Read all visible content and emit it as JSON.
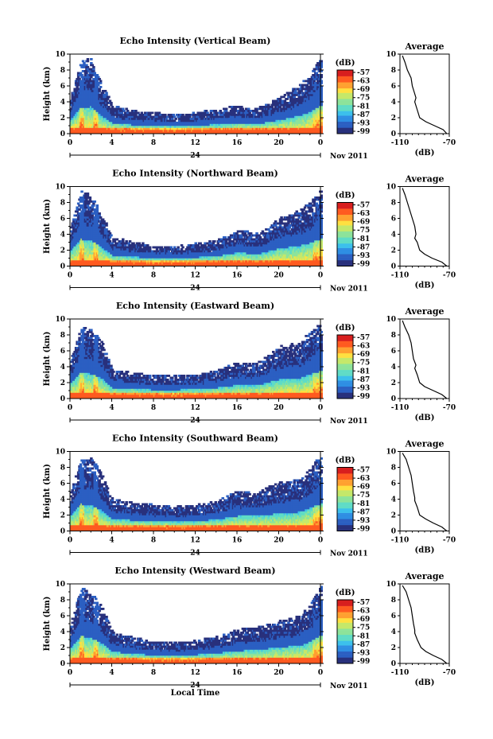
{
  "figure": {
    "xlabel": "Local Time",
    "date_label": "Nov 2011",
    "day_label": "24",
    "colorbar_label": "(dB)",
    "average_title": "Average",
    "average_xlabel": "(dB)",
    "ylabel": "Height (km)"
  },
  "colors": {
    "colormap": [
      "#28307c",
      "#2b5fc2",
      "#2f8ee3",
      "#3cc0ec",
      "#5fdcc6",
      "#8de39a",
      "#c5e86a",
      "#ffe040",
      "#ffa030",
      "#ff5a20",
      "#d81e1e"
    ]
  },
  "chart_data": [
    {
      "type": "heatmap",
      "title": "Echo Intensity (Vertical Beam)",
      "ylabel": "Height (km)",
      "ylim": [
        0,
        10
      ],
      "yticks": [
        "0",
        "2",
        "4",
        "6",
        "8",
        "10"
      ],
      "xlim": [
        0,
        24
      ],
      "xticks": [
        "0",
        "4",
        "8",
        "12",
        "16",
        "20",
        "0"
      ],
      "colorbar": {
        "label": "(dB)",
        "range": [
          -99,
          -57
        ],
        "ticks": [
          "-57",
          "-63",
          "-69",
          "-75",
          "-81",
          "-87",
          "-93",
          "-99"
        ]
      },
      "cloud_top_km": [
        [
          0,
          4.5
        ],
        [
          1,
          9.2
        ],
        [
          2,
          9.3
        ],
        [
          3,
          6
        ],
        [
          4,
          3.5
        ],
        [
          6,
          2.8
        ],
        [
          8,
          2.6
        ],
        [
          10,
          2.3
        ],
        [
          12,
          2.6
        ],
        [
          14,
          3
        ],
        [
          16,
          3.5
        ],
        [
          18,
          3.2
        ],
        [
          20,
          4.5
        ],
        [
          22,
          6.2
        ],
        [
          23,
          7.5
        ],
        [
          24,
          9.8
        ]
      ],
      "average_profile": {
        "title": "Average",
        "xlabel": "(dB)",
        "xticks": [
          "-110",
          "-70"
        ],
        "xlim": [
          -110,
          -70
        ],
        "ylim": [
          0,
          10
        ],
        "yticks": [
          "0",
          "2",
          "4",
          "6",
          "8",
          "10"
        ],
        "points": [
          [
            -108,
            9.8
          ],
          [
            -106,
            9
          ],
          [
            -104,
            8
          ],
          [
            -101,
            7
          ],
          [
            -100,
            6
          ],
          [
            -98,
            5
          ],
          [
            -97,
            4.5
          ],
          [
            -98,
            4
          ],
          [
            -96,
            3
          ],
          [
            -94,
            2
          ],
          [
            -89,
            1.5
          ],
          [
            -82,
            1
          ],
          [
            -75,
            0.5
          ],
          [
            -72,
            0
          ]
        ]
      }
    },
    {
      "type": "heatmap",
      "title": "Echo Intensity (Northward Beam)",
      "ylabel": "Height (km)",
      "ylim": [
        0,
        10
      ],
      "yticks": [
        "0",
        "2",
        "4",
        "6",
        "8",
        "10"
      ],
      "xlim": [
        0,
        24
      ],
      "xticks": [
        "0",
        "4",
        "8",
        "12",
        "16",
        "20",
        "0"
      ],
      "colorbar": {
        "label": "(dB)",
        "range": [
          -99,
          -57
        ],
        "ticks": [
          "-57",
          "-63",
          "-69",
          "-75",
          "-81",
          "-87",
          "-93",
          "-99"
        ]
      },
      "cloud_top_km": [
        [
          0,
          5
        ],
        [
          1,
          9.3
        ],
        [
          2,
          8.8
        ],
        [
          3,
          6.5
        ],
        [
          4,
          3.5
        ],
        [
          6,
          3
        ],
        [
          8,
          2.5
        ],
        [
          10,
          2.5
        ],
        [
          12,
          2.8
        ],
        [
          14,
          3.2
        ],
        [
          16,
          4.5
        ],
        [
          18,
          4
        ],
        [
          20,
          6
        ],
        [
          22,
          7
        ],
        [
          23,
          8
        ],
        [
          24,
          9.5
        ]
      ],
      "average_profile": {
        "title": "Average",
        "xlabel": "(dB)",
        "xticks": [
          "-110",
          "-70"
        ],
        "xlim": [
          -110,
          -70
        ],
        "ylim": [
          0,
          10
        ],
        "yticks": [
          "0",
          "2",
          "4",
          "6",
          "8",
          "10"
        ],
        "points": [
          [
            -108,
            9.8
          ],
          [
            -106,
            9
          ],
          [
            -104,
            8
          ],
          [
            -102,
            7
          ],
          [
            -100,
            6
          ],
          [
            -98,
            5
          ],
          [
            -97,
            4
          ],
          [
            -98,
            3.5
          ],
          [
            -96,
            3
          ],
          [
            -94,
            2
          ],
          [
            -90,
            1.5
          ],
          [
            -84,
            1
          ],
          [
            -76,
            0.5
          ],
          [
            -72,
            0
          ]
        ]
      }
    },
    {
      "type": "heatmap",
      "title": "Echo Intensity (Eastward Beam)",
      "ylabel": "Height (km)",
      "ylim": [
        0,
        10
      ],
      "yticks": [
        "0",
        "2",
        "4",
        "6",
        "8",
        "10"
      ],
      "xlim": [
        0,
        24
      ],
      "xticks": [
        "0",
        "4",
        "8",
        "12",
        "16",
        "20",
        "0"
      ],
      "colorbar": {
        "label": "(dB)",
        "range": [
          -99,
          -57
        ],
        "ticks": [
          "-57",
          "-63",
          "-69",
          "-75",
          "-81",
          "-87",
          "-93",
          "-99"
        ]
      },
      "cloud_top_km": [
        [
          0,
          5
        ],
        [
          1,
          9
        ],
        [
          2,
          8.5
        ],
        [
          3,
          7
        ],
        [
          4,
          3.5
        ],
        [
          6,
          3.2
        ],
        [
          8,
          2.8
        ],
        [
          10,
          2.8
        ],
        [
          12,
          3
        ],
        [
          14,
          3.5
        ],
        [
          16,
          4.5
        ],
        [
          18,
          4.5
        ],
        [
          20,
          6.5
        ],
        [
          22,
          7
        ],
        [
          23,
          8.5
        ],
        [
          24,
          9.5
        ]
      ],
      "average_profile": {
        "title": "Average",
        "xlabel": "(dB)",
        "xticks": [
          "-110",
          "-70"
        ],
        "xlim": [
          -110,
          -70
        ],
        "ylim": [
          0,
          10
        ],
        "yticks": [
          "0",
          "2",
          "4",
          "6",
          "8",
          "10"
        ],
        "points": [
          [
            -108,
            9.8
          ],
          [
            -106,
            9
          ],
          [
            -103,
            8
          ],
          [
            -101,
            7
          ],
          [
            -100,
            6
          ],
          [
            -99,
            5
          ],
          [
            -97,
            4.2
          ],
          [
            -98,
            3.8
          ],
          [
            -96,
            3
          ],
          [
            -94,
            2
          ],
          [
            -90,
            1.5
          ],
          [
            -83,
            1
          ],
          [
            -76,
            0.5
          ],
          [
            -72,
            0
          ]
        ]
      }
    },
    {
      "type": "heatmap",
      "title": "Echo Intensity (Southward Beam)",
      "ylabel": "Height (km)",
      "ylim": [
        0,
        10
      ],
      "yticks": [
        "0",
        "2",
        "4",
        "6",
        "8",
        "10"
      ],
      "xlim": [
        0,
        24
      ],
      "xticks": [
        "0",
        "4",
        "8",
        "12",
        "16",
        "20",
        "0"
      ],
      "colorbar": {
        "label": "(dB)",
        "range": [
          -99,
          -57
        ],
        "ticks": [
          "-57",
          "-63",
          "-69",
          "-75",
          "-81",
          "-87",
          "-93",
          "-99"
        ]
      },
      "cloud_top_km": [
        [
          0,
          5
        ],
        [
          1,
          9.3
        ],
        [
          2,
          9
        ],
        [
          3,
          7
        ],
        [
          4,
          4
        ],
        [
          6,
          3.5
        ],
        [
          8,
          3.2
        ],
        [
          10,
          3
        ],
        [
          12,
          3.2
        ],
        [
          14,
          3.8
        ],
        [
          16,
          5
        ],
        [
          18,
          5
        ],
        [
          20,
          6
        ],
        [
          22,
          6.5
        ],
        [
          23,
          8
        ],
        [
          24,
          9.5
        ]
      ],
      "average_profile": {
        "title": "Average",
        "xlabel": "(dB)",
        "xticks": [
          "-110",
          "-70"
        ],
        "xlim": [
          -110,
          -70
        ],
        "ylim": [
          0,
          10
        ],
        "yticks": [
          "0",
          "2",
          "4",
          "6",
          "8",
          "10"
        ],
        "points": [
          [
            -108,
            9.8
          ],
          [
            -105,
            9
          ],
          [
            -103,
            8
          ],
          [
            -101,
            7
          ],
          [
            -100,
            6
          ],
          [
            -99,
            5
          ],
          [
            -98,
            4.2
          ],
          [
            -98,
            3.8
          ],
          [
            -96,
            3
          ],
          [
            -94,
            2
          ],
          [
            -89,
            1.5
          ],
          [
            -83,
            1
          ],
          [
            -76,
            0.5
          ],
          [
            -72,
            0
          ]
        ]
      }
    },
    {
      "type": "heatmap",
      "title": "Echo Intensity (Westward Beam)",
      "ylabel": "Height (km)",
      "ylim": [
        0,
        10
      ],
      "yticks": [
        "0",
        "2",
        "4",
        "6",
        "8",
        "10"
      ],
      "xlim": [
        0,
        24
      ],
      "xticks": [
        "0",
        "4",
        "8",
        "12",
        "16",
        "20",
        "0"
      ],
      "colorbar": {
        "label": "(dB)",
        "range": [
          -99,
          -57
        ],
        "ticks": [
          "-57",
          "-63",
          "-69",
          "-75",
          "-81",
          "-87",
          "-93",
          "-99"
        ]
      },
      "cloud_top_km": [
        [
          0,
          5
        ],
        [
          1,
          9.5
        ],
        [
          2,
          8.8
        ],
        [
          3,
          7
        ],
        [
          4,
          3.8
        ],
        [
          6,
          3.2
        ],
        [
          8,
          2.6
        ],
        [
          10,
          2.6
        ],
        [
          12,
          2.8
        ],
        [
          14,
          3.3
        ],
        [
          16,
          4.2
        ],
        [
          18,
          4.5
        ],
        [
          20,
          5.5
        ],
        [
          22,
          6
        ],
        [
          23,
          7.5
        ],
        [
          24,
          9.8
        ]
      ],
      "average_profile": {
        "title": "Average",
        "xlabel": "(dB)",
        "xticks": [
          "-110",
          "-70"
        ],
        "xlim": [
          -110,
          -70
        ],
        "ylim": [
          0,
          10
        ],
        "yticks": [
          "0",
          "2",
          "4",
          "6",
          "8",
          "10"
        ],
        "points": [
          [
            -108,
            9.8
          ],
          [
            -105,
            9
          ],
          [
            -103,
            8
          ],
          [
            -101,
            7
          ],
          [
            -100,
            6
          ],
          [
            -99,
            5
          ],
          [
            -98,
            4.2
          ],
          [
            -98,
            3.8
          ],
          [
            -96,
            3
          ],
          [
            -93,
            2
          ],
          [
            -89,
            1.5
          ],
          [
            -83,
            1
          ],
          [
            -76,
            0.5
          ],
          [
            -72,
            0
          ]
        ]
      }
    }
  ]
}
